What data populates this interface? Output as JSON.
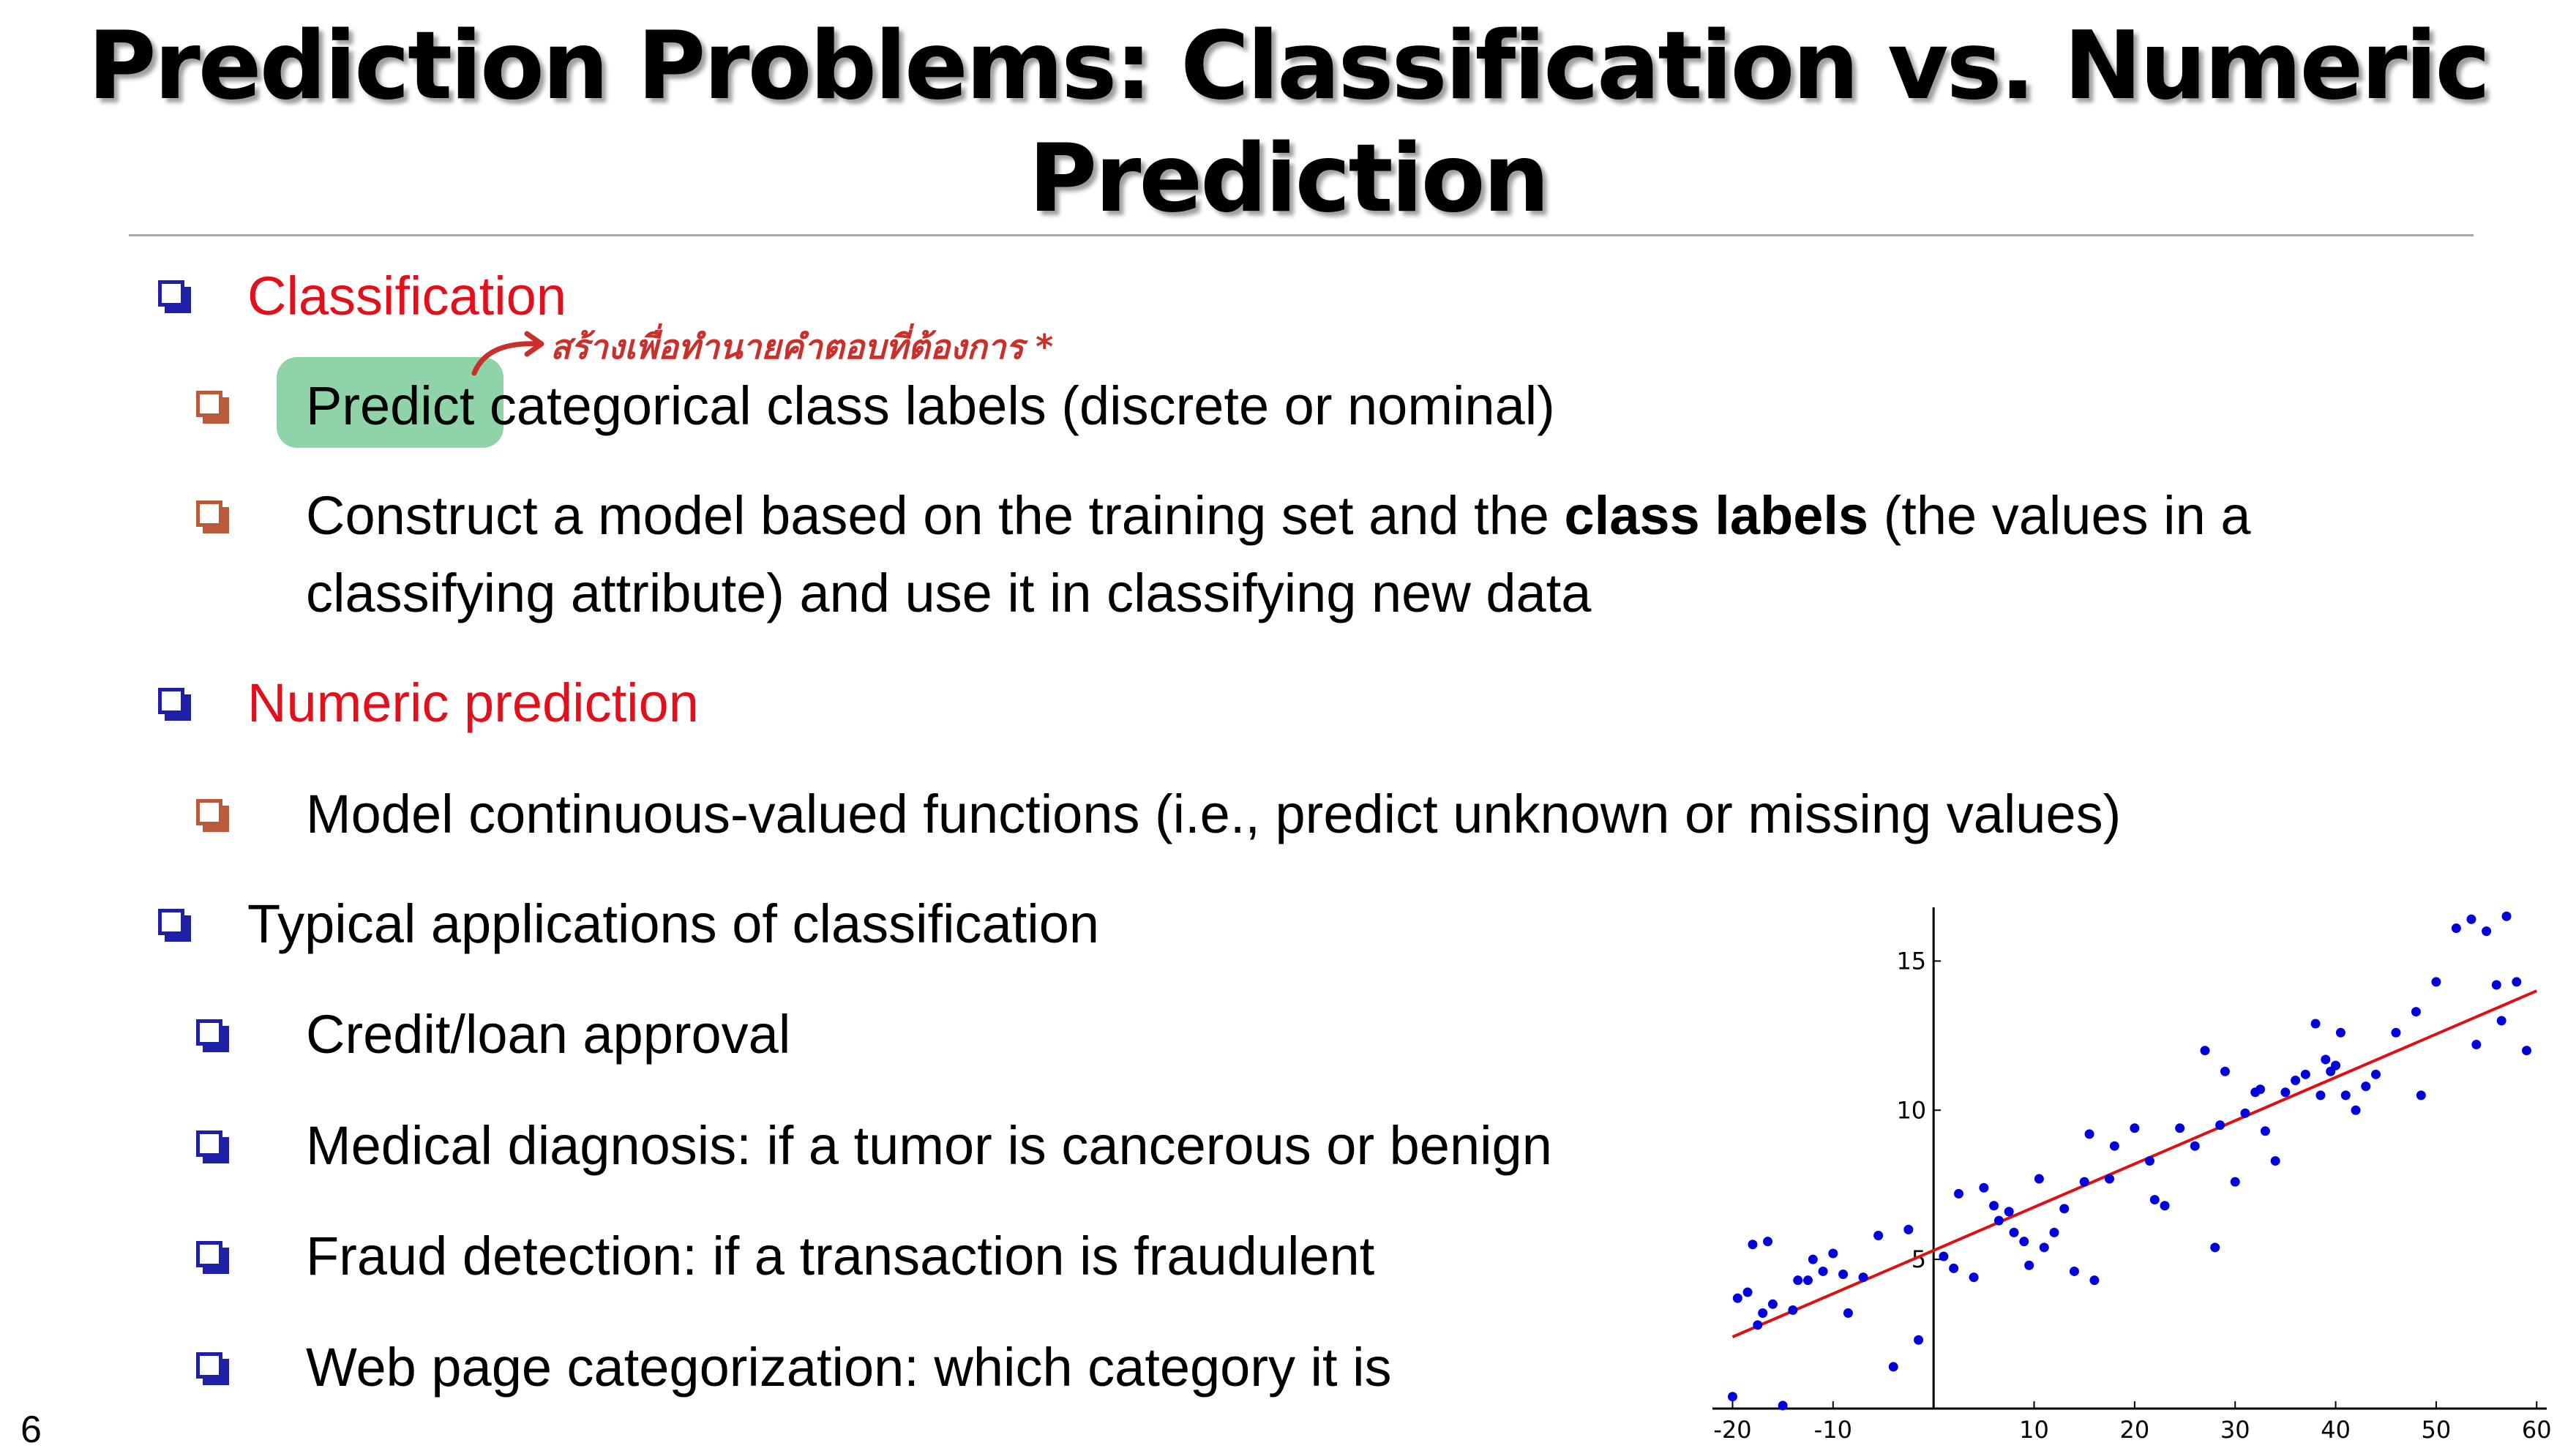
{
  "title": {
    "line1": "Prediction Problems: Classification vs. Numeric",
    "line2": "Prediction"
  },
  "annotation": "สร้างเพื่อทำนายคำตอบที่ต้องการ *",
  "bullets": {
    "classification": {
      "heading": "Classification",
      "sub1": {
        "highlight": "Predict",
        "rest": " categorical class labels (discrete or nominal)"
      },
      "sub2": {
        "pre": "Construct a model based on the training set and the ",
        "bold": "class labels",
        "post": " (the values in a",
        "line2": "classifying attribute) and use it in classifying new data"
      }
    },
    "numeric": {
      "heading": "Numeric prediction",
      "sub1": "Model continuous-valued functions (i.e., predict unknown or missing values)"
    },
    "applications": {
      "heading": "Typical applications of classification",
      "items": [
        "Credit/loan approval",
        "Medical diagnosis: if a tumor is cancerous or benign",
        "Fraud detection: if a transaction is fraudulent",
        "Web page categorization: which category it is"
      ]
    }
  },
  "page_number": "6",
  "colors": {
    "navy": "#1f1fa8",
    "rust": "#b95a3a",
    "red": "#e3101c",
    "highlight": "#8fd4a9",
    "points": "#0000dd",
    "fit_line": "#dd1111"
  },
  "chart_data": {
    "type": "scatter",
    "xlim": [
      -22,
      61
    ],
    "ylim": [
      0,
      16.8
    ],
    "x_ticks": [
      "-20",
      "-10",
      "10",
      "20",
      "30",
      "40",
      "50",
      "60"
    ],
    "x_tick_values": [
      -20,
      -10,
      10,
      20,
      30,
      40,
      50,
      60
    ],
    "y_ticks": [
      "5",
      "10",
      "15"
    ],
    "y_tick_values": [
      5,
      10,
      15
    ],
    "fit_line": {
      "x": [
        -20,
        60
      ],
      "y": [
        2.4,
        14.0
      ]
    },
    "points": {
      "x": [
        -20,
        -19.5,
        -18.5,
        -17.5,
        -18,
        -17,
        -16.5,
        -16,
        -15,
        -14,
        -13.5,
        -12.5,
        -12,
        -11,
        -10,
        -9,
        -8.5,
        -7,
        -5.5,
        -4,
        -2.5,
        -1.5,
        1,
        2,
        2.5,
        4,
        5,
        6,
        6.5,
        7.5,
        8,
        9,
        9.5,
        10.5,
        11,
        12,
        13,
        14,
        15,
        15.5,
        16,
        17.5,
        18,
        20,
        21.5,
        22,
        23,
        24.5,
        26,
        27,
        28,
        28.5,
        29,
        30,
        31,
        32,
        32.5,
        33,
        34,
        35,
        36,
        37,
        38,
        38.5,
        39,
        39.5,
        40,
        40.5,
        41,
        42,
        43,
        44,
        46,
        48,
        48.5,
        50,
        52,
        53.5,
        54,
        55,
        56,
        56.5,
        57,
        58,
        59
      ],
      "y": [
        0.4,
        3.7,
        3.9,
        2.8,
        5.5,
        3.2,
        5.6,
        3.5,
        0.1,
        3.3,
        4.3,
        4.3,
        5.0,
        4.6,
        5.2,
        4.5,
        3.2,
        4.4,
        5.8,
        1.4,
        6.0,
        2.3,
        5.1,
        4.7,
        7.2,
        4.4,
        7.4,
        6.8,
        6.3,
        6.6,
        5.9,
        5.6,
        4.8,
        7.7,
        5.4,
        5.9,
        6.7,
        4.6,
        7.6,
        9.2,
        4.3,
        7.7,
        8.8,
        9.4,
        8.3,
        7.0,
        6.8,
        9.4,
        8.8,
        12.0,
        5.4,
        9.5,
        11.3,
        7.6,
        9.9,
        10.6,
        10.7,
        9.3,
        8.3,
        10.6,
        11.0,
        11.2,
        12.9,
        10.5,
        11.7,
        11.3,
        11.5,
        12.6,
        10.5,
        10.0,
        10.8,
        11.2,
        12.6,
        13.3,
        10.5,
        14.3,
        16.1,
        16.4,
        12.2,
        16.0,
        14.2,
        13.0,
        16.5,
        14.3,
        12.0
      ]
    }
  }
}
